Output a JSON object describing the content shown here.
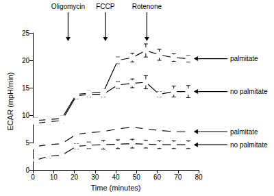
{
  "chart_data": {
    "type": "line",
    "x_label": "Time (minutes)",
    "y_label": "ECAR (mpH/min)",
    "x": [
      1.5,
      7.5,
      14,
      21,
      27,
      34,
      41,
      48,
      54.5,
      61,
      68,
      75
    ],
    "series": [
      {
        "name": "palmitate",
        "color": "#000000",
        "marker": "square",
        "values": [
          9,
          9.2,
          9.4,
          13.8,
          14,
          14.2,
          20,
          20.5,
          21.8,
          21,
          20.5,
          20.3
        ],
        "errors": [
          0.5,
          0.5,
          0.5,
          0.5,
          0.5,
          0.5,
          0.6,
          0.8,
          1.2,
          1,
          0.7,
          0.6
        ]
      },
      {
        "name": "no palmitate",
        "color": "#000000",
        "marker": "circle",
        "values": [
          8.5,
          8.8,
          9,
          13.5,
          13.8,
          13.8,
          15.5,
          15.8,
          16,
          13.8,
          14.3,
          14.3
        ],
        "errors": [
          0.4,
          0.4,
          0.4,
          0.5,
          0.5,
          0.5,
          0.6,
          0.8,
          1.2,
          0.5,
          1,
          1.1
        ]
      },
      {
        "name": "palmitate",
        "color": "#000000",
        "marker": "square",
        "values": [
          4.3,
          4.6,
          4.8,
          6.5,
          6.8,
          7,
          7.5,
          7.8,
          7.5,
          7.2,
          7,
          7
        ],
        "errors": [
          0.3,
          0.3,
          0.3,
          0.3,
          0.3,
          0.4,
          0.4,
          0.4,
          0.4,
          0.4,
          0.4,
          0.4
        ]
      },
      {
        "name": "no palmitate",
        "color": "#000000",
        "marker": "circle",
        "values": [
          1.8,
          2.5,
          2.7,
          4.3,
          4.5,
          4.6,
          4.7,
          4.8,
          4.7,
          4.6,
          4.6,
          4.6
        ],
        "errors": [
          0.4,
          0.4,
          0.4,
          0.5,
          0.6,
          0.8,
          0.8,
          0.8,
          0.7,
          0.7,
          0.7,
          0.7
        ]
      }
    ],
    "annotations": [
      {
        "text": "Oligomycin",
        "x": 17
      },
      {
        "text": "FCCP",
        "x": 35
      },
      {
        "text": "Rotenone",
        "x": 55
      }
    ],
    "xlim": [
      0,
      80
    ],
    "xticks": [
      0,
      10,
      20,
      30,
      40,
      50,
      60,
      70,
      80
    ],
    "ylim": [
      0,
      25
    ],
    "yticks": [
      0,
      5,
      10,
      15,
      20,
      25
    ],
    "grid": false
  }
}
